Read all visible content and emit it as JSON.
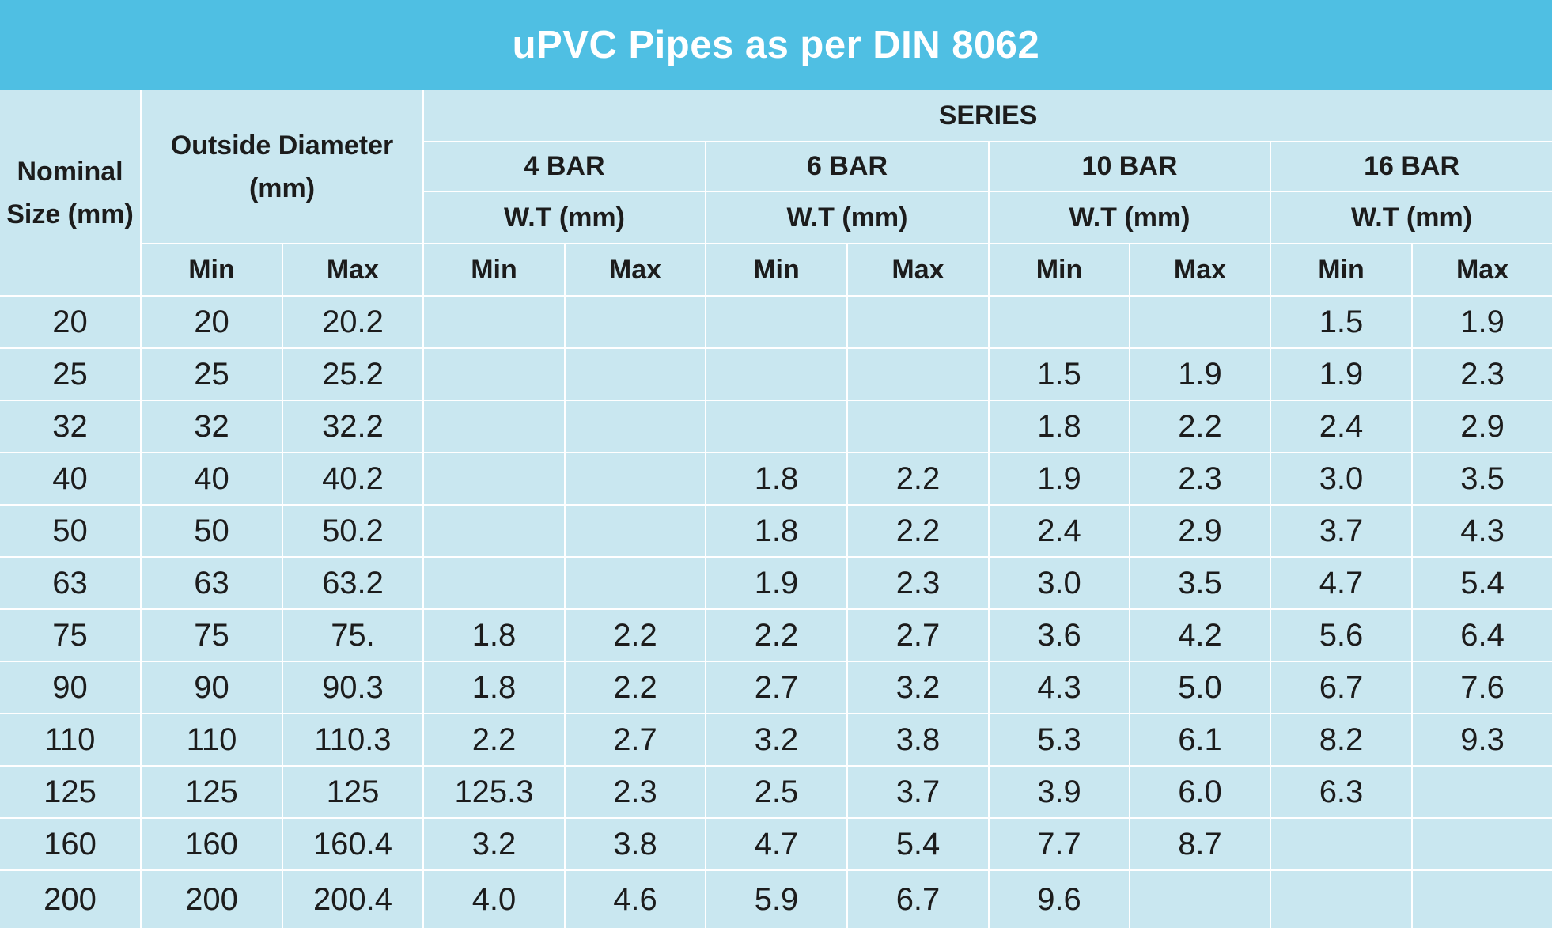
{
  "title": "uPVC Pipes as per DIN 8062",
  "headers": {
    "nominal_size": "Nominal Size (mm)",
    "outside_diameter": "Outside Diameter (mm)",
    "series": "SERIES",
    "bars": [
      "4 BAR",
      "6 BAR",
      "10 BAR",
      "16 BAR"
    ],
    "wall_thickness": "W.T (mm)",
    "min": "Min",
    "max": "Max"
  },
  "rows": [
    [
      "20",
      "20",
      "20.2",
      "",
      "",
      "",
      "",
      "",
      "",
      "1.5",
      "1.9"
    ],
    [
      "25",
      "25",
      "25.2",
      "",
      "",
      "",
      "",
      "1.5",
      "1.9",
      "1.9",
      "2.3"
    ],
    [
      "32",
      "32",
      "32.2",
      "",
      "",
      "",
      "",
      "1.8",
      "2.2",
      "2.4",
      "2.9"
    ],
    [
      "40",
      "40",
      "40.2",
      "",
      "",
      "1.8",
      "2.2",
      "1.9",
      "2.3",
      "3.0",
      "3.5"
    ],
    [
      "50",
      "50",
      "50.2",
      "",
      "",
      "1.8",
      "2.2",
      "2.4",
      "2.9",
      "3.7",
      "4.3"
    ],
    [
      "63",
      "63",
      "63.2",
      "",
      "",
      "1.9",
      "2.3",
      "3.0",
      "3.5",
      "4.7",
      "5.4"
    ],
    [
      "75",
      "75",
      "75.",
      "1.8",
      "2.2",
      "2.2",
      "2.7",
      "3.6",
      "4.2",
      "5.6",
      "6.4"
    ],
    [
      "90",
      "90",
      "90.3",
      "1.8",
      "2.2",
      "2.7",
      "3.2",
      "4.3",
      "5.0",
      "6.7",
      "7.6"
    ],
    [
      "110",
      "110",
      "110.3",
      "2.2",
      "2.7",
      "3.2",
      "3.8",
      "5.3",
      "6.1",
      "8.2",
      "9.3"
    ],
    [
      "125",
      "125",
      "125",
      "125.3",
      "2.3",
      "2.5",
      "3.7",
      "3.9",
      "6.0",
      "6.3",
      ""
    ],
    [
      "160",
      "160",
      "160.4",
      "3.2",
      "3.8",
      "4.7",
      "5.4",
      "7.7",
      "8.7",
      "",
      ""
    ],
    [
      "200",
      "200",
      "200.4",
      "4.0",
      "4.6",
      "5.9",
      "6.7",
      "9.6",
      "",
      "",
      ""
    ]
  ],
  "colors": {
    "title_bar": "#4fbfe3",
    "table_bg": "#c9e7f0",
    "grid_lines": "#ffffff"
  }
}
